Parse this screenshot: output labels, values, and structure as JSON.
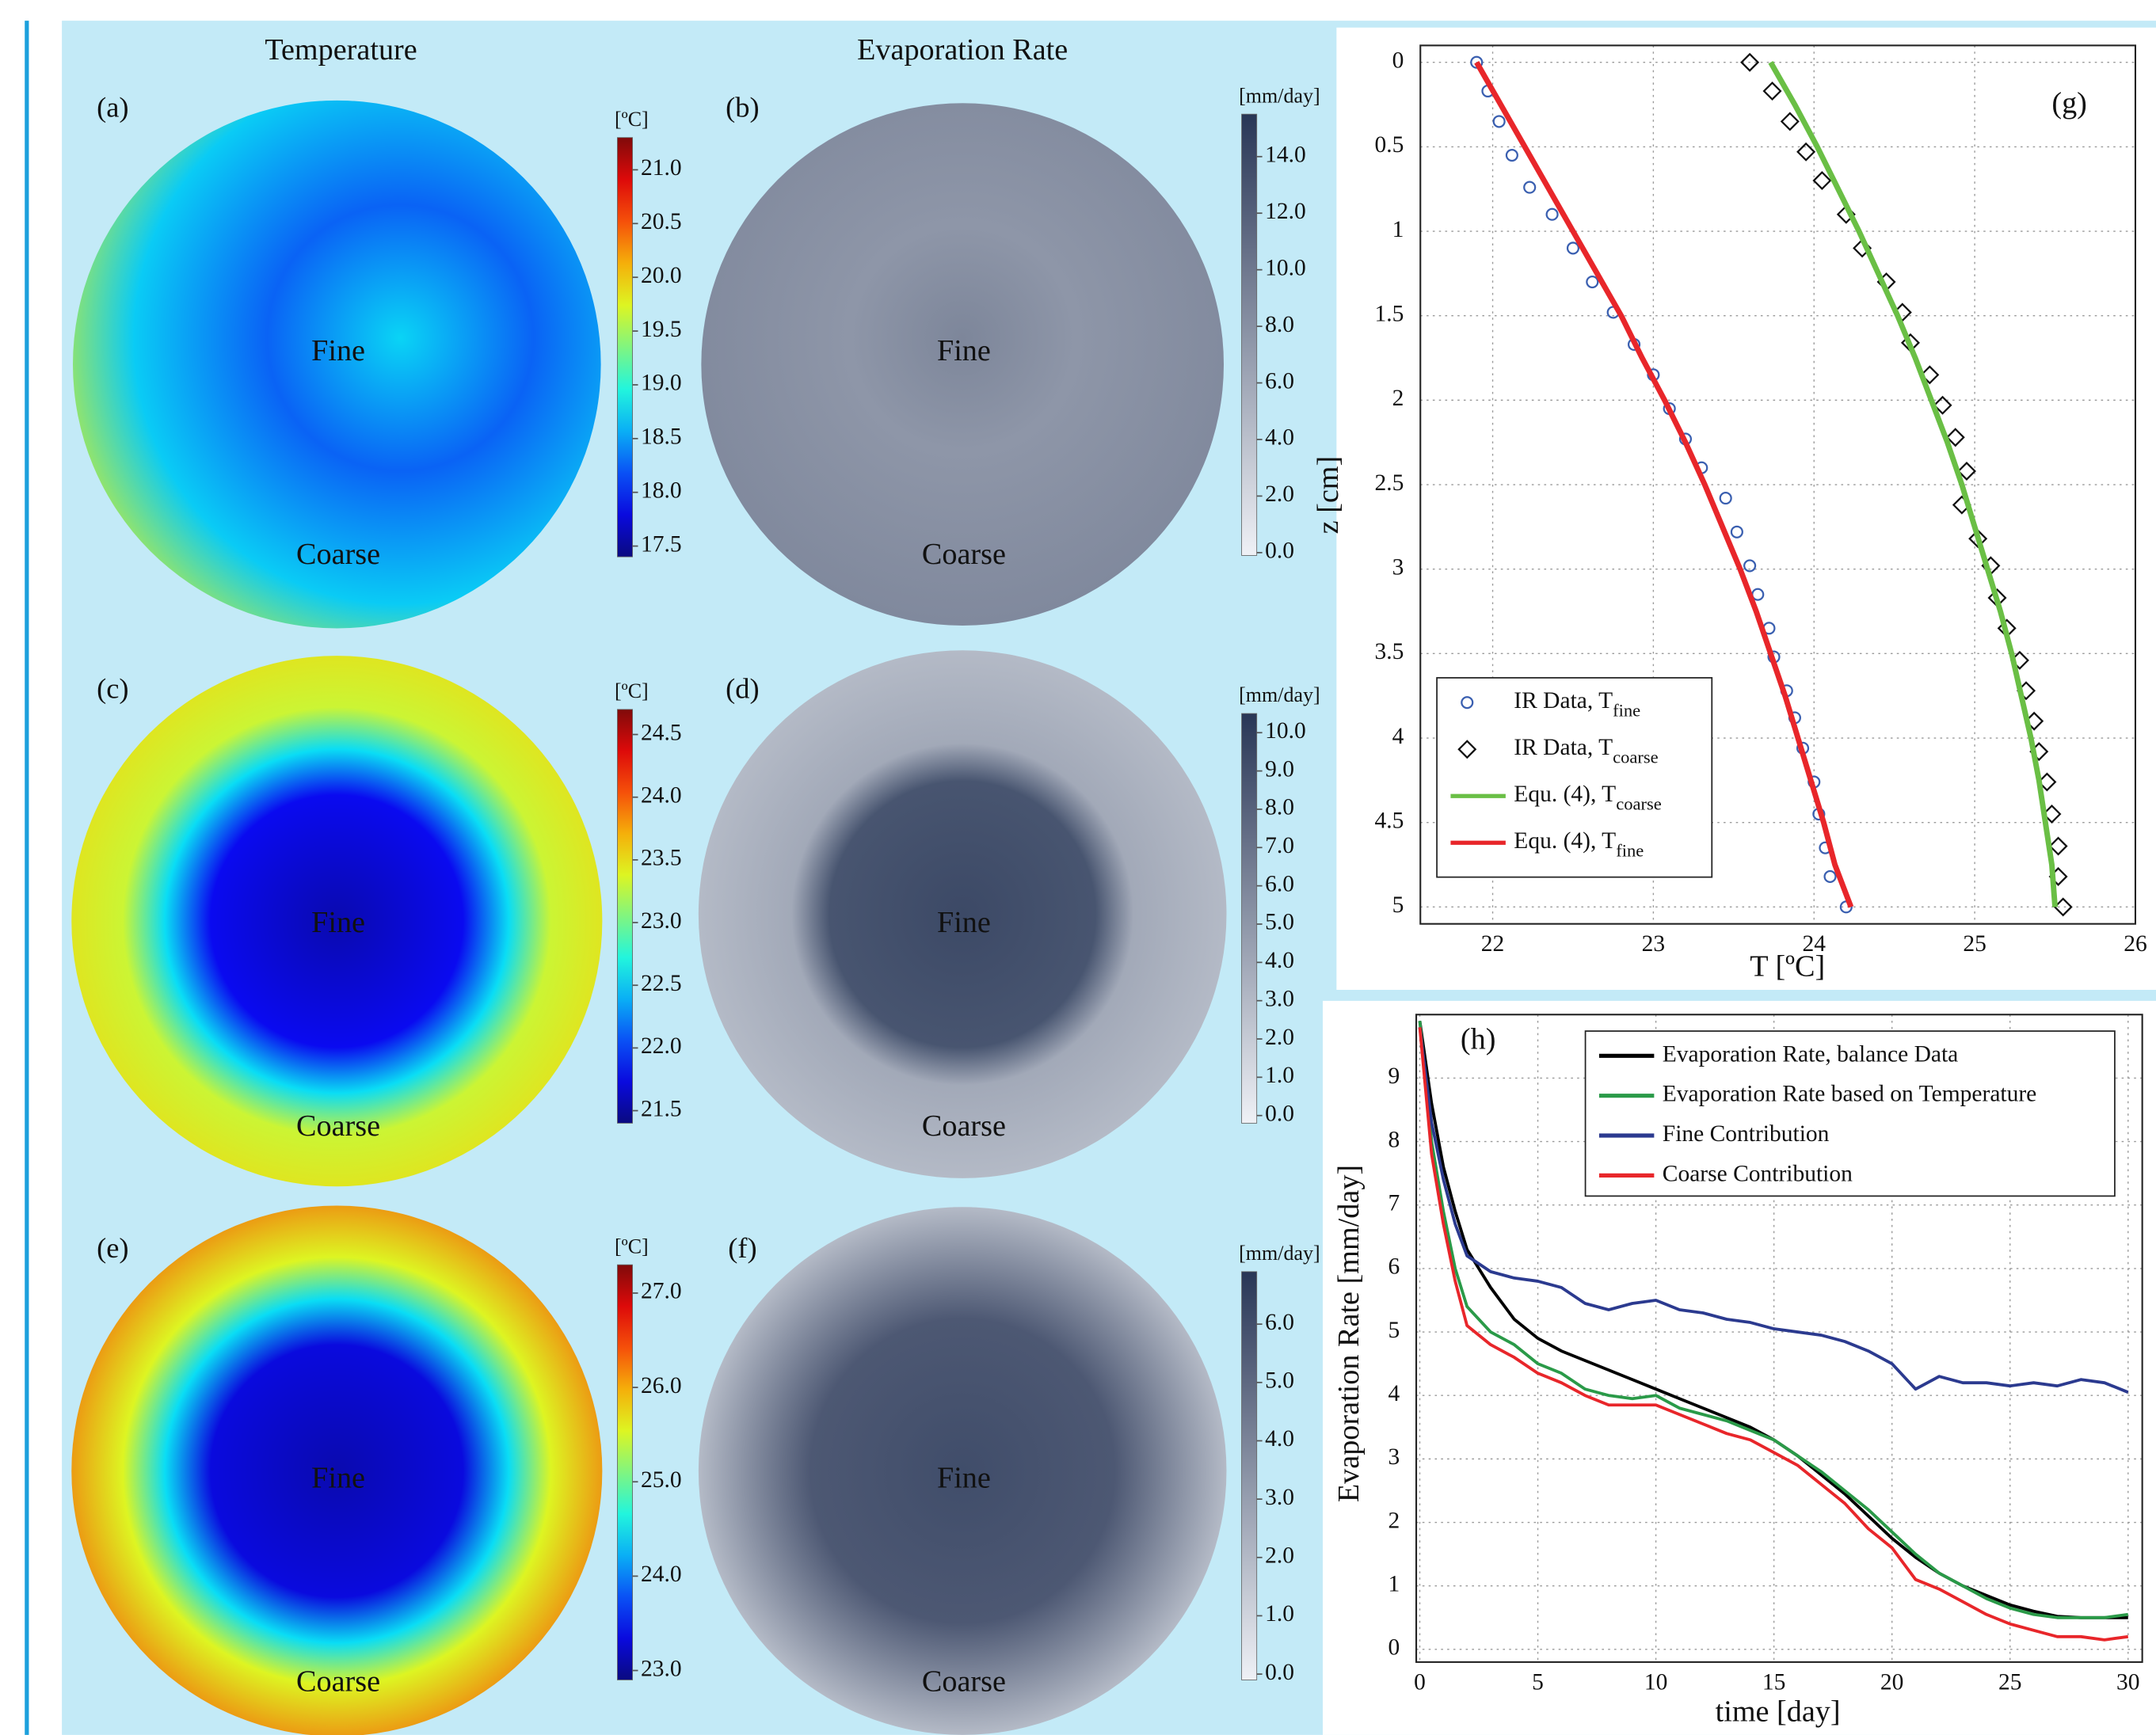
{
  "column_titles": [
    "Temperature",
    "Evaporation Rate"
  ],
  "chart_data": [
    {
      "type": "heatmap",
      "label": "(a)",
      "colormap": "jet",
      "colorbar_label": "[ºC]",
      "clim": [
        17.4,
        21.3
      ],
      "cticks": [
        17.5,
        {
          "value": 18,
          "label": "18.0"
        },
        18.5,
        {
          "value": 19,
          "label": "19.0"
        },
        19.5,
        {
          "value": 20,
          "label": "20.0"
        },
        20.5,
        {
          "value": 21,
          "label": "21.0"
        }
      ],
      "annotations": [
        "Fine",
        "Coarse"
      ]
    },
    {
      "type": "heatmap",
      "label": "(b)",
      "colormap": "bone",
      "colorbar_label": "[mm/day]",
      "clim": [
        -0.1,
        15.5
      ],
      "cticks": [
        {
          "value": 0,
          "label": "0.0"
        },
        {
          "value": 2,
          "label": "2.0"
        },
        {
          "value": 4,
          "label": "4.0"
        },
        {
          "value": 6,
          "label": "6.0"
        },
        {
          "value": 8,
          "label": "8.0"
        },
        {
          "value": 10,
          "label": "10.0"
        },
        {
          "value": 12,
          "label": "12.0"
        },
        {
          "value": 14,
          "label": "14.0"
        }
      ],
      "annotations": [
        "Fine",
        "Coarse"
      ]
    },
    {
      "type": "heatmap",
      "label": "(c)",
      "colormap": "jet",
      "colorbar_label": "[ºC]",
      "clim": [
        21.4,
        24.7
      ],
      "cticks": [
        21.5,
        {
          "value": 22,
          "label": "22.0"
        },
        22.5,
        {
          "value": 23,
          "label": "23.0"
        },
        23.5,
        {
          "value": 24,
          "label": "24.0"
        },
        24.5
      ],
      "annotations": [
        "Fine",
        "Coarse"
      ]
    },
    {
      "type": "heatmap",
      "label": "(d)",
      "colormap": "bone",
      "colorbar_label": "[mm/day]",
      "clim": [
        -0.2,
        10.5
      ],
      "cticks": [
        {
          "value": 0,
          "label": "0.0"
        },
        {
          "value": 1,
          "label": "1.0"
        },
        {
          "value": 2,
          "label": "2.0"
        },
        {
          "value": 3,
          "label": "3.0"
        },
        {
          "value": 4,
          "label": "4.0"
        },
        {
          "value": 5,
          "label": "5.0"
        },
        {
          "value": 6,
          "label": "6.0"
        },
        {
          "value": 7,
          "label": "7.0"
        },
        {
          "value": 8,
          "label": "8.0"
        },
        {
          "value": 9,
          "label": "9.0"
        },
        {
          "value": 10,
          "label": "10.0"
        }
      ],
      "annotations": [
        "Fine",
        "Coarse"
      ]
    },
    {
      "type": "heatmap",
      "label": "(e)",
      "colormap": "jet",
      "colorbar_label": "[ºC]",
      "clim": [
        22.9,
        27.3
      ],
      "cticks": [
        {
          "value": 23,
          "label": "23.0"
        },
        {
          "value": 24,
          "label": "24.0"
        },
        {
          "value": 25,
          "label": "25.0"
        },
        {
          "value": 26,
          "label": "26.0"
        },
        {
          "value": 27,
          "label": "27.0"
        }
      ],
      "annotations": [
        "Fine",
        "Coarse"
      ]
    },
    {
      "type": "heatmap",
      "label": "(f)",
      "colormap": "bone",
      "colorbar_label": "[mm/day]",
      "clim": [
        -0.1,
        6.9
      ],
      "cticks": [
        {
          "value": 0,
          "label": "0.0"
        },
        {
          "value": 1,
          "label": "1.0"
        },
        {
          "value": 2,
          "label": "2.0"
        },
        {
          "value": 3,
          "label": "3.0"
        },
        {
          "value": 4,
          "label": "4.0"
        },
        {
          "value": 5,
          "label": "5.0"
        },
        {
          "value": 6,
          "label": "6.0"
        }
      ],
      "annotations": [
        "Fine",
        "Coarse"
      ]
    },
    {
      "type": "profile",
      "label": "(g)",
      "xlabel": "T [ºC]",
      "ylabel": "z [cm]",
      "xlim": [
        21.55,
        26
      ],
      "ylim": [
        -0.1,
        5.1
      ],
      "y_inverted": true,
      "xticks": [
        22,
        23,
        24,
        25,
        26
      ],
      "yticks": [
        0,
        0.5,
        1,
        1.5,
        2,
        2.5,
        3,
        3.5,
        4,
        4.5,
        5
      ],
      "grid": true,
      "legend": "lower left",
      "series": [
        {
          "name": "IR Data, T",
          "name_sub": "fine",
          "color": "#3a5fb0",
          "marker": "circle",
          "x": [
            21.9,
            21.97,
            22.04,
            22.12,
            22.23,
            22.37,
            22.5,
            22.62,
            22.75,
            22.88,
            23.0,
            23.1,
            23.2,
            23.3,
            23.45,
            23.52,
            23.6,
            23.65,
            23.72,
            23.75,
            23.83,
            23.88,
            23.93,
            24.0,
            24.03,
            24.07,
            24.1,
            24.2
          ],
          "y": [
            0,
            0.17,
            0.35,
            0.55,
            0.74,
            0.9,
            1.1,
            1.3,
            1.48,
            1.67,
            1.85,
            2.05,
            2.23,
            2.4,
            2.58,
            2.78,
            2.98,
            3.15,
            3.35,
            3.52,
            3.72,
            3.88,
            4.06,
            4.26,
            4.45,
            4.65,
            4.82,
            5.0
          ]
        },
        {
          "name": "IR Data, T",
          "name_sub": "coarse",
          "color": "#111111",
          "marker": "diamond",
          "x": [
            23.6,
            23.74,
            23.85,
            23.95,
            24.05,
            24.2,
            24.3,
            24.45,
            24.55,
            24.6,
            24.72,
            24.8,
            24.88,
            24.95,
            24.92,
            25.02,
            25.1,
            25.14,
            25.2,
            25.28,
            25.32,
            25.37,
            25.4,
            25.45,
            25.48,
            25.52,
            25.52,
            25.55
          ],
          "y": [
            0,
            0.17,
            0.35,
            0.53,
            0.7,
            0.9,
            1.1,
            1.3,
            1.48,
            1.66,
            1.85,
            2.03,
            2.22,
            2.42,
            2.62,
            2.82,
            2.98,
            3.17,
            3.35,
            3.54,
            3.72,
            3.9,
            4.08,
            4.26,
            4.45,
            4.64,
            4.82,
            5.0
          ]
        },
        {
          "name": "Equ. (4), T",
          "name_sub": "coarse",
          "color": "#6abf45",
          "marker": "line",
          "x": [
            23.73,
            23.88,
            24.02,
            24.15,
            24.28,
            24.4,
            24.52,
            24.63,
            24.73,
            24.83,
            24.92,
            25.0,
            25.08,
            25.16,
            25.23,
            25.29,
            25.35,
            25.4,
            25.44,
            25.48,
            25.5
          ],
          "y": [
            0,
            0.25,
            0.5,
            0.75,
            1,
            1.25,
            1.5,
            1.75,
            2,
            2.25,
            2.5,
            2.75,
            3,
            3.25,
            3.5,
            3.75,
            4,
            4.25,
            4.5,
            4.75,
            5
          ]
        },
        {
          "name": "Equ. (4), T",
          "name_sub": "fine",
          "color": "#e8262a",
          "marker": "line",
          "x": [
            21.9,
            22.05,
            22.2,
            22.35,
            22.5,
            22.65,
            22.8,
            22.93,
            23.07,
            23.2,
            23.32,
            23.43,
            23.54,
            23.64,
            23.73,
            23.82,
            23.9,
            23.98,
            24.06,
            24.13,
            24.23
          ],
          "y": [
            0,
            0.25,
            0.5,
            0.75,
            1,
            1.25,
            1.5,
            1.75,
            2,
            2.25,
            2.5,
            2.75,
            3,
            3.25,
            3.5,
            3.75,
            4,
            4.25,
            4.5,
            4.75,
            5
          ]
        }
      ]
    },
    {
      "type": "line",
      "label": "(h)",
      "xlabel": "time [day]",
      "ylabel": "Evaporation Rate [mm/day]",
      "xlim": [
        -0.15,
        30.6
      ],
      "ylim": [
        -0.2,
        10
      ],
      "xticks": [
        0,
        5,
        10,
        15,
        20,
        25,
        30
      ],
      "yticks": [
        0,
        1,
        2,
        3,
        4,
        5,
        6,
        7,
        8,
        9
      ],
      "grid": true,
      "legend": "upper right",
      "x": [
        0,
        0.5,
        1,
        1.5,
        2,
        3,
        4,
        5,
        6,
        7,
        8,
        9,
        10,
        11,
        12,
        13,
        14,
        15,
        16,
        17,
        18,
        19,
        20,
        21,
        22,
        23,
        24,
        25,
        26,
        27,
        28,
        29,
        30
      ],
      "series": [
        {
          "name": "Evaporation Rate, balance Data",
          "color": "#000000",
          "values": [
            9.9,
            8.6,
            7.6,
            6.9,
            6.3,
            5.7,
            5.2,
            4.9,
            4.7,
            4.55,
            4.4,
            4.25,
            4.1,
            3.95,
            3.8,
            3.65,
            3.5,
            3.3,
            3.05,
            2.75,
            2.45,
            2.1,
            1.75,
            1.45,
            1.2,
            1.0,
            0.85,
            0.7,
            0.6,
            0.52,
            0.5,
            0.5,
            0.5
          ]
        },
        {
          "name": "Evaporation Rate based on Temperature",
          "color": "#2a9a48",
          "values": [
            9.9,
            8.0,
            6.9,
            6.0,
            5.4,
            5.0,
            4.8,
            4.5,
            4.35,
            4.1,
            4.0,
            3.95,
            4.0,
            3.8,
            3.7,
            3.6,
            3.45,
            3.3,
            3.05,
            2.8,
            2.5,
            2.2,
            1.85,
            1.5,
            1.2,
            1.0,
            0.8,
            0.65,
            0.55,
            0.5,
            0.5,
            0.5,
            0.55
          ]
        },
        {
          "name": "Fine Contribution",
          "color": "#2b3a8f",
          "values": [
            9.8,
            8.3,
            7.4,
            6.7,
            6.2,
            5.95,
            5.85,
            5.8,
            5.7,
            5.45,
            5.35,
            5.45,
            5.5,
            5.35,
            5.3,
            5.2,
            5.15,
            5.05,
            5.0,
            4.95,
            4.85,
            4.7,
            4.5,
            4.1,
            4.3,
            4.2,
            4.2,
            4.15,
            4.2,
            4.15,
            4.25,
            4.2,
            4.05
          ]
        },
        {
          "name": "Coarse Contribution",
          "color": "#e8262a",
          "values": [
            9.8,
            7.8,
            6.7,
            5.8,
            5.1,
            4.8,
            4.6,
            4.35,
            4.2,
            4.0,
            3.85,
            3.85,
            3.85,
            3.7,
            3.55,
            3.4,
            3.3,
            3.1,
            2.9,
            2.6,
            2.3,
            1.9,
            1.6,
            1.1,
            0.95,
            0.75,
            0.55,
            0.4,
            0.3,
            0.2,
            0.2,
            0.15,
            0.2
          ]
        }
      ]
    }
  ]
}
